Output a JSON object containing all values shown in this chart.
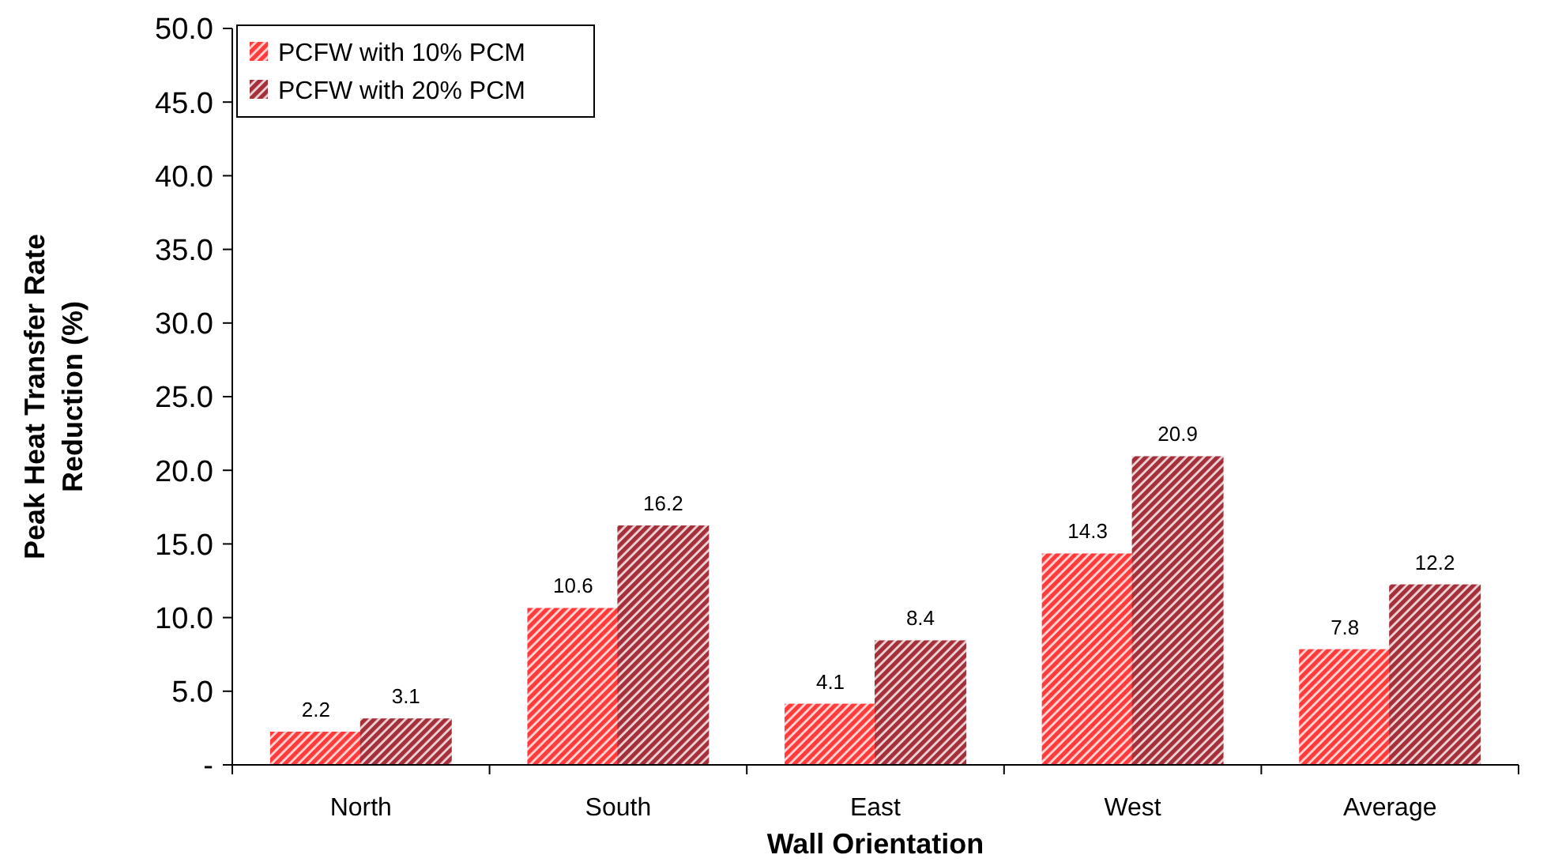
{
  "chart_data": {
    "type": "bar",
    "xlabel": "Wall Orientation",
    "ylabel": "Peak Heat Transfer Rate Reduction (%)",
    "categories": [
      "North",
      "South",
      "East",
      "West",
      "Average"
    ],
    "series": [
      {
        "name": "PCFW with 10% PCM",
        "color": "#ff3b3b",
        "values": [
          2.2,
          10.6,
          4.1,
          14.3,
          7.8
        ]
      },
      {
        "name": "PCFW with 20% PCM",
        "color": "#a3303a",
        "values": [
          3.1,
          16.2,
          8.4,
          20.9,
          12.2
        ]
      }
    ],
    "ylim": [
      0,
      50
    ],
    "yticks": [
      {
        "value": 0,
        "label": "-"
      },
      {
        "value": 5,
        "label": "5.0"
      },
      {
        "value": 10,
        "label": "10.0"
      },
      {
        "value": 15,
        "label": "15.0"
      },
      {
        "value": 20,
        "label": "20.0"
      },
      {
        "value": 25,
        "label": "25.0"
      },
      {
        "value": 30,
        "label": "30.0"
      },
      {
        "value": 35,
        "label": "35.0"
      },
      {
        "value": 40,
        "label": "40.0"
      },
      {
        "value": 45,
        "label": "45.0"
      },
      {
        "value": 50,
        "label": "50.0"
      }
    ],
    "grid": false,
    "legend": "top left",
    "data_labels": true
  }
}
